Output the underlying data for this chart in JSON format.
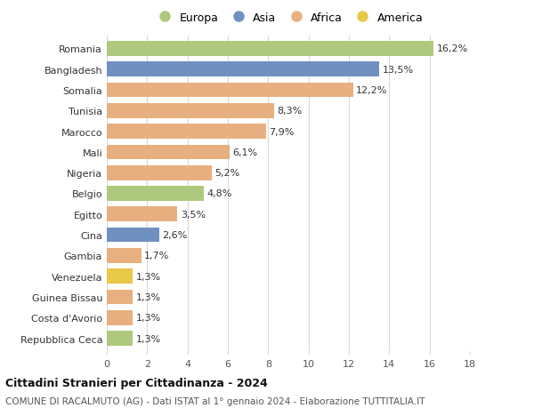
{
  "countries": [
    "Romania",
    "Bangladesh",
    "Somalia",
    "Tunisia",
    "Marocco",
    "Mali",
    "Nigeria",
    "Belgio",
    "Egitto",
    "Cina",
    "Gambia",
    "Venezuela",
    "Guinea Bissau",
    "Costa d'Avorio",
    "Repubblica Ceca"
  ],
  "values": [
    16.2,
    13.5,
    12.2,
    8.3,
    7.9,
    6.1,
    5.2,
    4.8,
    3.5,
    2.6,
    1.7,
    1.3,
    1.3,
    1.3,
    1.3
  ],
  "labels": [
    "16,2%",
    "13,5%",
    "12,2%",
    "8,3%",
    "7,9%",
    "6,1%",
    "5,2%",
    "4,8%",
    "3,5%",
    "2,6%",
    "1,7%",
    "1,3%",
    "1,3%",
    "1,3%",
    "1,3%"
  ],
  "continents": [
    "Europa",
    "Asia",
    "Africa",
    "Africa",
    "Africa",
    "Africa",
    "Africa",
    "Europa",
    "Africa",
    "Asia",
    "Africa",
    "America",
    "Africa",
    "Africa",
    "Europa"
  ],
  "colors": {
    "Europa": "#aec97e",
    "Asia": "#7090c0",
    "Africa": "#e8b080",
    "America": "#e8c848"
  },
  "xlim": [
    0,
    18
  ],
  "xticks": [
    0,
    2,
    4,
    6,
    8,
    10,
    12,
    14,
    16,
    18
  ],
  "title": "Cittadini Stranieri per Cittadinanza - 2024",
  "subtitle": "COMUNE DI RACALMUTO (AG) - Dati ISTAT al 1° gennaio 2024 - Elaborazione TUTTITALIA.IT",
  "bg_color": "#ffffff",
  "grid_color": "#d8d8d8",
  "bar_height": 0.72,
  "label_fontsize": 8.0,
  "tick_fontsize": 8.0,
  "legend_order": [
    "Europa",
    "Asia",
    "Africa",
    "America"
  ]
}
